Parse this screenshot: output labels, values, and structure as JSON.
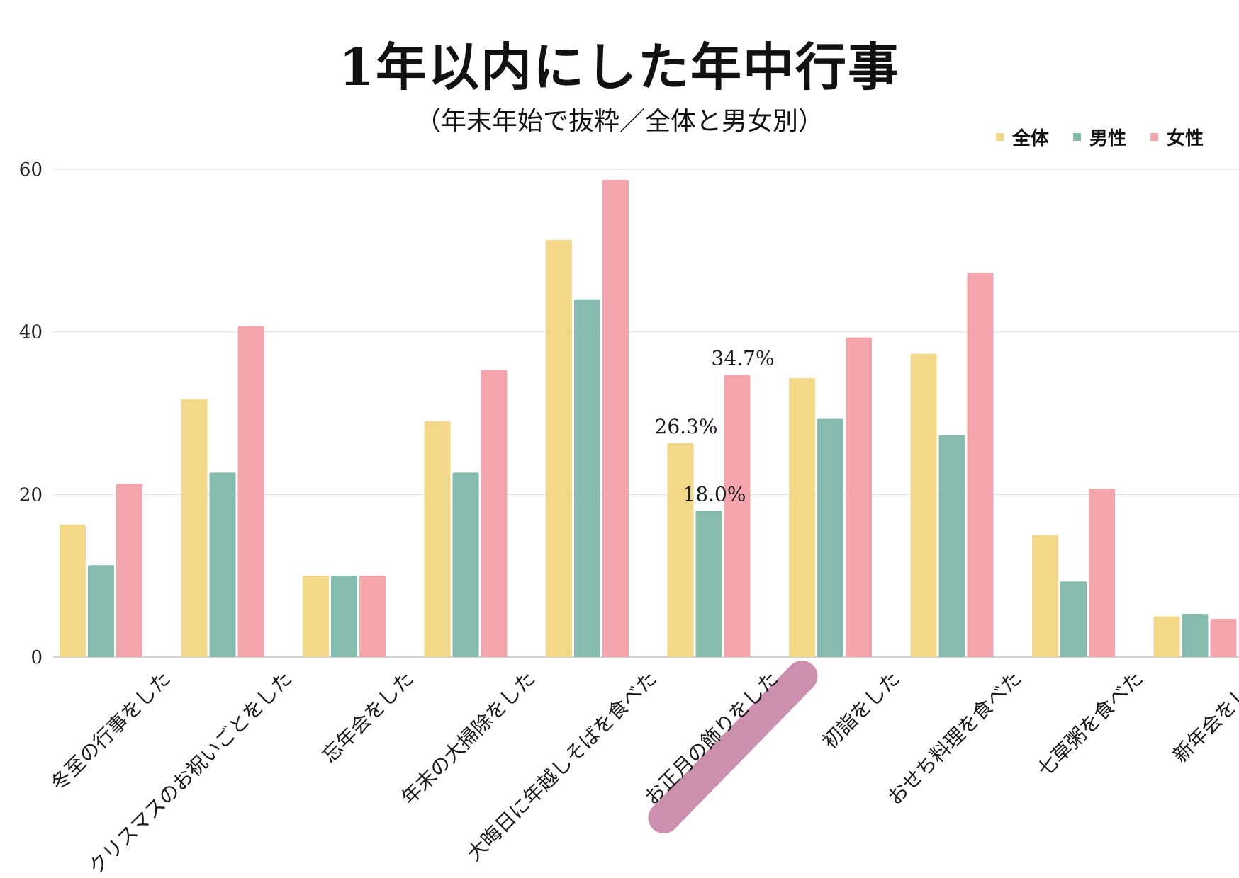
{
  "chart_data": {
    "type": "bar",
    "title": "1年以内にした年中行事",
    "subtitle": "（年末年始で抜粋／全体と男女別）",
    "categories": [
      "冬至の行事をした",
      "クリスマスのお祝いごとをした",
      "忘年会をした",
      "年末の大掃除をした",
      "大晦日に年越しそばを食べた",
      "お正月の飾りをした",
      "初詣をした",
      "おせち料理を食べた",
      "七草粥を食べた",
      "新年会をした"
    ],
    "series": [
      {
        "name": "全体",
        "color": "#f2d888",
        "values": [
          16.3,
          31.7,
          10.0,
          29.0,
          51.3,
          26.3,
          34.3,
          37.3,
          15.0,
          5.0
        ]
      },
      {
        "name": "男性",
        "color": "#86bcad",
        "values": [
          11.3,
          22.7,
          10.0,
          22.7,
          44.0,
          18.0,
          29.3,
          27.3,
          9.3,
          5.3
        ]
      },
      {
        "name": "女性",
        "color": "#f4a4ab",
        "values": [
          21.3,
          40.7,
          10.0,
          35.3,
          58.7,
          34.7,
          39.3,
          47.3,
          20.7,
          4.7
        ]
      }
    ],
    "data_labels": [
      {
        "category": "お正月の飾りをした",
        "series": "全体",
        "text": "26.3%"
      },
      {
        "category": "お正月の飾りをした",
        "series": "男性",
        "text": "18.0%"
      },
      {
        "category": "お正月の飾りをした",
        "series": "女性",
        "text": "34.7%"
      }
    ],
    "highlight": {
      "category": "お正月の飾りをした",
      "color": "#c98aab"
    },
    "y_ticks": [
      "0",
      "20",
      "40",
      "60"
    ],
    "ylim": [
      0,
      60
    ],
    "grid": true,
    "legend_position": "top-right",
    "xlabel": "",
    "ylabel": ""
  }
}
